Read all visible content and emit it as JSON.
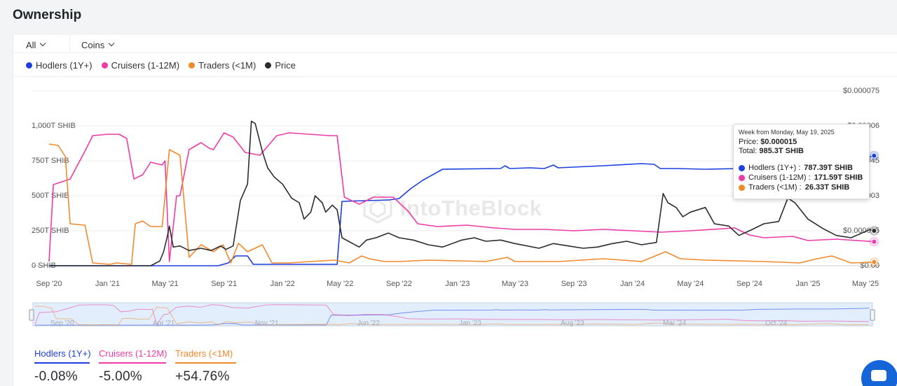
{
  "page": {
    "title": "Ownership"
  },
  "filters": {
    "range": "All",
    "unit": "Coins"
  },
  "legend": [
    {
      "label": "Hodlers (1Y+)",
      "color": "#1d3fe0"
    },
    {
      "label": "Cruisers (1-12M)",
      "color": "#ee3ba7"
    },
    {
      "label": "Traders (<1M)",
      "color": "#f08a2c"
    },
    {
      "label": "Price",
      "color": "#2c2c2c"
    }
  ],
  "tooltip": {
    "header": "Week from Monday, May 19, 2025",
    "price_label": "Price:",
    "price": "$0.000015",
    "total_label": "Total:",
    "total": "985.3T SHIB",
    "rows": [
      {
        "label": "Hodlers (1Y+) :",
        "value": "787.39T SHIB",
        "color": "#1d3fe0"
      },
      {
        "label": "Cruisers (1-12M) :",
        "value": "171.59T SHIB",
        "color": "#ee3ba7"
      },
      {
        "label": "Traders (<1M) :",
        "value": "26.33T SHIB",
        "color": "#f08a2c"
      }
    ]
  },
  "watermark": "IntoTheBlock",
  "navigator": {
    "labels": [
      "Sep '20",
      "Apr '21",
      "Nov '21",
      "Jun '22",
      "Jan '23",
      "Aug '23",
      "Mar '24",
      "Oct '24"
    ]
  },
  "stats": [
    {
      "label": "Hodlers (1Y+)",
      "value": "-0.08%",
      "color": "#1d3fe0"
    },
    {
      "label": "Cruisers (1-12M)",
      "value": "-5.00%",
      "color": "#ee3ba7"
    },
    {
      "label": "Traders (<1M)",
      "value": "+54.76%",
      "color": "#f08a2c"
    }
  ],
  "chart_data": {
    "type": "line",
    "x_tick_labels": [
      "Sep '20",
      "Jan '21",
      "May '21",
      "Sep '21",
      "Jan '22",
      "May '22",
      "Sep '22",
      "Jan '23",
      "May '23",
      "Sep '23",
      "Jan '24",
      "May '24",
      "Sep '24",
      "Jan '25",
      "May '25"
    ],
    "x_ticks": [
      "2020-09-01",
      "2021-01-01",
      "2021-05-01",
      "2021-09-01",
      "2022-01-01",
      "2022-05-01",
      "2022-09-01",
      "2023-01-01",
      "2023-05-01",
      "2023-09-01",
      "2024-01-01",
      "2024-05-01",
      "2024-09-01",
      "2025-01-01",
      "2025-05-01"
    ],
    "y_left": {
      "unit": "T SHIB",
      "ylim": [
        0,
        1000
      ],
      "tick_labels": [
        "0 SHIB",
        "250T SHIB",
        "500T SHIB",
        "750T SHIB",
        "1,000T SHIB"
      ],
      "ticks": [
        0,
        250,
        500,
        750,
        1000
      ]
    },
    "y_right": {
      "unit": "USD",
      "ylim": [
        0,
        7.5e-05
      ],
      "tick_labels": [
        "$0.00",
        "$0.000015",
        "$0.00003",
        "$0.000045",
        "$0.00006",
        "$0.000075"
      ],
      "ticks": [
        0,
        1.5e-05,
        3e-05,
        4.5e-05,
        6e-05,
        7.5e-05
      ]
    },
    "series": [
      {
        "name": "Hodlers (1Y+)",
        "axis": "left",
        "color": "#1d3fe0",
        "points": [
          [
            "2020-09-01",
            0
          ],
          [
            "2021-01-01",
            0
          ],
          [
            "2021-05-01",
            0
          ],
          [
            "2021-06-01",
            0
          ],
          [
            "2021-08-20",
            0
          ],
          [
            "2021-09-10",
            20
          ],
          [
            "2021-09-25",
            70
          ],
          [
            "2021-10-20",
            70
          ],
          [
            "2021-11-01",
            10
          ],
          [
            "2022-04-25",
            10
          ],
          [
            "2022-05-05",
            460
          ],
          [
            "2022-06-20",
            465
          ],
          [
            "2022-08-10",
            470
          ],
          [
            "2022-09-01",
            480
          ],
          [
            "2022-09-25",
            550
          ],
          [
            "2022-10-20",
            610
          ],
          [
            "2022-12-01",
            690
          ],
          [
            "2023-04-01",
            695
          ],
          [
            "2023-04-10",
            715
          ],
          [
            "2023-04-20",
            695
          ],
          [
            "2023-06-01",
            700
          ],
          [
            "2023-07-01",
            695
          ],
          [
            "2023-07-20",
            720
          ],
          [
            "2023-07-30",
            700
          ],
          [
            "2023-11-01",
            715
          ],
          [
            "2024-01-20",
            730
          ],
          [
            "2024-02-15",
            725
          ],
          [
            "2024-02-28",
            695
          ],
          [
            "2024-04-01",
            695
          ],
          [
            "2024-06-01",
            690
          ],
          [
            "2024-08-15",
            695
          ],
          [
            "2024-09-01",
            695
          ],
          [
            "2024-10-01",
            730
          ],
          [
            "2024-11-15",
            740
          ],
          [
            "2025-01-01",
            745
          ],
          [
            "2025-03-01",
            745
          ],
          [
            "2025-05-01",
            770
          ],
          [
            "2025-05-19",
            787
          ]
        ]
      },
      {
        "name": "Cruisers (1-12M)",
        "axis": "left",
        "color": "#ee3ba7",
        "points": [
          [
            "2020-09-01",
            30
          ],
          [
            "2020-09-10",
            580
          ],
          [
            "2020-10-15",
            620
          ],
          [
            "2020-11-15",
            820
          ],
          [
            "2020-12-01",
            930
          ],
          [
            "2021-01-01",
            940
          ],
          [
            "2021-01-25",
            940
          ],
          [
            "2021-02-10",
            910
          ],
          [
            "2021-02-25",
            620
          ],
          [
            "2021-03-15",
            650
          ],
          [
            "2021-04-01",
            740
          ],
          [
            "2021-04-25",
            720
          ],
          [
            "2021-05-01",
            750
          ],
          [
            "2021-05-10",
            30
          ],
          [
            "2021-05-25",
            500
          ],
          [
            "2021-06-01",
            500
          ],
          [
            "2021-06-20",
            830
          ],
          [
            "2021-07-15",
            880
          ],
          [
            "2021-08-01",
            840
          ],
          [
            "2021-08-10",
            830
          ],
          [
            "2021-09-01",
            950
          ],
          [
            "2021-09-20",
            920
          ],
          [
            "2021-10-15",
            810
          ],
          [
            "2021-11-15",
            790
          ],
          [
            "2021-12-20",
            930
          ],
          [
            "2022-01-15",
            950
          ],
          [
            "2022-04-10",
            930
          ],
          [
            "2022-04-25",
            930
          ],
          [
            "2022-05-10",
            490
          ],
          [
            "2022-06-10",
            440
          ],
          [
            "2022-07-10",
            490
          ],
          [
            "2022-08-20",
            490
          ],
          [
            "2022-09-20",
            390
          ],
          [
            "2022-10-10",
            300
          ],
          [
            "2022-11-20",
            280
          ],
          [
            "2023-01-20",
            290
          ],
          [
            "2023-03-20",
            270
          ],
          [
            "2023-05-01",
            260
          ],
          [
            "2023-07-01",
            260
          ],
          [
            "2023-09-01",
            250
          ],
          [
            "2023-11-01",
            260
          ],
          [
            "2024-01-01",
            250
          ],
          [
            "2024-03-01",
            240
          ],
          [
            "2024-05-01",
            250
          ],
          [
            "2024-08-01",
            270
          ],
          [
            "2024-09-01",
            220
          ],
          [
            "2024-10-01",
            200
          ],
          [
            "2024-12-01",
            210
          ],
          [
            "2025-01-01",
            180
          ],
          [
            "2025-03-01",
            190
          ],
          [
            "2025-05-19",
            172
          ]
        ]
      },
      {
        "name": "Traders (<1M)",
        "axis": "left",
        "color": "#f08a2c",
        "points": [
          [
            "2020-09-01",
            870
          ],
          [
            "2020-09-20",
            860
          ],
          [
            "2020-10-05",
            780
          ],
          [
            "2020-10-15",
            300
          ],
          [
            "2020-11-15",
            290
          ],
          [
            "2020-12-01",
            20
          ],
          [
            "2021-01-05",
            10
          ],
          [
            "2021-01-20",
            20
          ],
          [
            "2021-02-20",
            10
          ],
          [
            "2021-02-28",
            300
          ],
          [
            "2021-03-15",
            320
          ],
          [
            "2021-04-01",
            280
          ],
          [
            "2021-04-25",
            280
          ],
          [
            "2021-05-10",
            830
          ],
          [
            "2021-06-01",
            790
          ],
          [
            "2021-06-20",
            60
          ],
          [
            "2021-07-15",
            150
          ],
          [
            "2021-08-10",
            100
          ],
          [
            "2021-08-30",
            150
          ],
          [
            "2021-09-15",
            20
          ],
          [
            "2021-10-01",
            160
          ],
          [
            "2021-10-20",
            100
          ],
          [
            "2021-11-20",
            150
          ],
          [
            "2021-12-10",
            20
          ],
          [
            "2022-01-15",
            20
          ],
          [
            "2022-03-01",
            30
          ],
          [
            "2022-04-20",
            40
          ],
          [
            "2022-05-20",
            20
          ],
          [
            "2022-06-15",
            70
          ],
          [
            "2022-07-01",
            50
          ],
          [
            "2022-08-01",
            30
          ],
          [
            "2022-09-01",
            30
          ],
          [
            "2022-11-01",
            40
          ],
          [
            "2023-03-01",
            30
          ],
          [
            "2023-04-15",
            60
          ],
          [
            "2023-05-01",
            30
          ],
          [
            "2023-08-01",
            30
          ],
          [
            "2023-11-01",
            50
          ],
          [
            "2024-01-20",
            30
          ],
          [
            "2024-03-10",
            100
          ],
          [
            "2024-04-10",
            50
          ],
          [
            "2024-06-01",
            40
          ],
          [
            "2024-10-01",
            30
          ],
          [
            "2024-12-15",
            20
          ],
          [
            "2025-01-20",
            50
          ],
          [
            "2025-02-20",
            70
          ],
          [
            "2025-04-01",
            20
          ],
          [
            "2025-05-19",
            26
          ]
        ]
      },
      {
        "name": "Price",
        "axis": "right",
        "color": "#2c2c2c",
        "points": [
          [
            "2020-09-01",
            0
          ],
          [
            "2021-04-01",
            0
          ],
          [
            "2021-04-20",
            2e-06
          ],
          [
            "2021-04-28",
            6e-06
          ],
          [
            "2021-05-05",
            1.2e-05
          ],
          [
            "2021-05-10",
            1.7e-05
          ],
          [
            "2021-05-18",
            8e-06
          ],
          [
            "2021-06-01",
            8.5e-06
          ],
          [
            "2021-06-20",
            6.5e-06
          ],
          [
            "2021-07-15",
            7.5e-06
          ],
          [
            "2021-08-05",
            6.5e-06
          ],
          [
            "2021-08-25",
            8.5e-06
          ],
          [
            "2021-09-05",
            7e-06
          ],
          [
            "2021-09-20",
            8.5e-06
          ],
          [
            "2021-10-05",
            2.8e-05
          ],
          [
            "2021-10-20",
            3.5e-05
          ],
          [
            "2021-10-28",
            6.2e-05
          ],
          [
            "2021-11-05",
            6.1e-05
          ],
          [
            "2021-11-20",
            4.9e-05
          ],
          [
            "2021-12-01",
            4.2e-05
          ],
          [
            "2021-12-15",
            3.8e-05
          ],
          [
            "2022-01-01",
            3.5e-05
          ],
          [
            "2022-01-20",
            2.9e-05
          ],
          [
            "2022-02-05",
            2.7e-05
          ],
          [
            "2022-02-15",
            2e-05
          ],
          [
            "2022-03-01",
            2.3e-05
          ],
          [
            "2022-03-10",
            3e-05
          ],
          [
            "2022-03-25",
            2.7e-05
          ],
          [
            "2022-04-01",
            2.3e-05
          ],
          [
            "2022-04-15",
            2.6e-05
          ],
          [
            "2022-04-25",
            2.4e-05
          ],
          [
            "2022-05-05",
            1.2e-05
          ],
          [
            "2022-06-10",
            8e-06
          ],
          [
            "2022-06-25",
            1.1e-05
          ],
          [
            "2022-07-15",
            1.2e-05
          ],
          [
            "2022-08-10",
            1.4e-05
          ],
          [
            "2022-09-01",
            1.2e-05
          ],
          [
            "2022-10-01",
            1.1e-05
          ],
          [
            "2022-11-01",
            9e-06
          ],
          [
            "2022-12-01",
            8e-06
          ],
          [
            "2023-01-10",
            1.1e-05
          ],
          [
            "2023-02-05",
            1.2e-05
          ],
          [
            "2023-03-01",
            1.05e-05
          ],
          [
            "2023-04-01",
            1.1e-05
          ],
          [
            "2023-05-01",
            9.5e-06
          ],
          [
            "2023-06-20",
            7.5e-06
          ],
          [
            "2023-07-20",
            9.5e-06
          ],
          [
            "2023-08-20",
            8.5e-06
          ],
          [
            "2023-09-20",
            7.5e-06
          ],
          [
            "2023-10-20",
            8e-06
          ],
          [
            "2023-11-20",
            9.5e-06
          ],
          [
            "2023-12-20",
            1.05e-05
          ],
          [
            "2024-01-20",
            9e-06
          ],
          [
            "2024-02-20",
            1e-05
          ],
          [
            "2024-03-05",
            3.1e-05
          ],
          [
            "2024-03-15",
            2.7e-05
          ],
          [
            "2024-04-01",
            2.5e-05
          ],
          [
            "2024-04-15",
            2.1e-05
          ],
          [
            "2024-05-01",
            2.3e-05
          ],
          [
            "2024-06-01",
            2.5e-05
          ],
          [
            "2024-06-20",
            1.8e-05
          ],
          [
            "2024-07-20",
            1.7e-05
          ],
          [
            "2024-08-10",
            1.3e-05
          ],
          [
            "2024-09-01",
            1.5e-05
          ],
          [
            "2024-10-01",
            1.8e-05
          ],
          [
            "2024-11-01",
            1.9e-05
          ],
          [
            "2024-11-20",
            2.9e-05
          ],
          [
            "2024-12-05",
            2.7e-05
          ],
          [
            "2025-01-01",
            2e-05
          ],
          [
            "2025-02-01",
            1.6e-05
          ],
          [
            "2025-03-01",
            1.3e-05
          ],
          [
            "2025-04-01",
            1.2e-05
          ],
          [
            "2025-05-10",
            1.55e-05
          ],
          [
            "2025-05-19",
            1.5e-05
          ]
        ]
      }
    ],
    "legend_position": "top",
    "grid": "horizontal",
    "annotation": "Week from Monday, May 19, 2025"
  }
}
